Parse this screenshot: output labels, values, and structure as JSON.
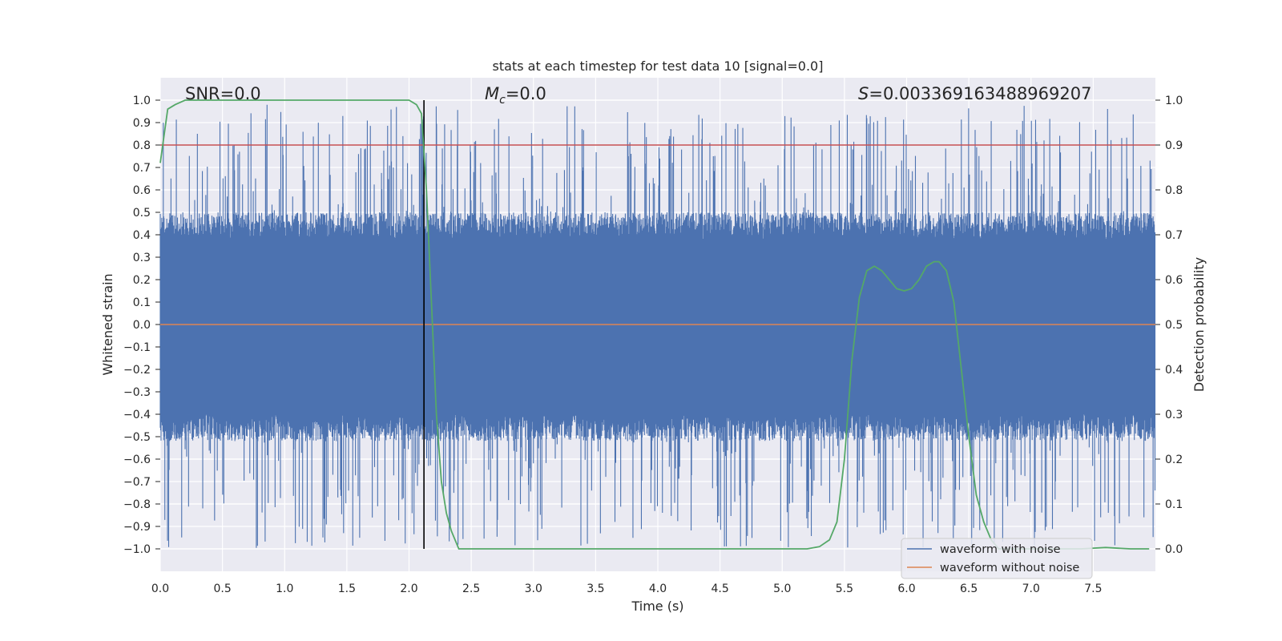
{
  "chart_data": {
    "type": "line",
    "title": "stats at each timestep for test data 10 [signal=0.0]",
    "xlabel": "Time (s)",
    "ylabel_left": "Whitened strain",
    "ylabel_right": "Detection probability",
    "xlim": [
      0.0,
      8.0
    ],
    "ylim_left": [
      -1.1,
      1.1
    ],
    "ylim_right": [
      -0.05,
      1.05
    ],
    "x_ticks": [
      "0.0",
      "0.5",
      "1.0",
      "1.5",
      "2.0",
      "2.5",
      "3.0",
      "3.5",
      "4.0",
      "4.5",
      "5.0",
      "5.5",
      "6.0",
      "6.5",
      "7.0",
      "7.5"
    ],
    "y_left_ticks": [
      "1.0",
      "0.9",
      "0.8",
      "0.7",
      "0.6",
      "0.5",
      "0.4",
      "0.3",
      "0.2",
      "0.1",
      "0.0",
      "−0.1",
      "−0.2",
      "−0.3",
      "−0.4",
      "−0.5",
      "−0.6",
      "−0.7",
      "−0.8",
      "−0.9",
      "−1.0"
    ],
    "y_right_ticks": [
      "1.0",
      "0.9",
      "0.8",
      "0.7",
      "0.6",
      "0.5",
      "0.4",
      "0.3",
      "0.2",
      "0.1",
      "0.0"
    ],
    "grid": true,
    "annotations": {
      "snr_text": "SNR=0.0",
      "mc_prefix": "M",
      "mc_sub": "c",
      "mc_value": "=0.0",
      "s_prefix": "S",
      "s_value": "=0.003369163488969207"
    },
    "threshold_line": {
      "axis": "right",
      "y": 0.9,
      "color": "#c44e52"
    },
    "vertical_marker": {
      "x": 2.12,
      "y_range_left": [
        -1.0,
        1.0
      ],
      "color": "#000000"
    },
    "noise_envelope": {
      "description_free": true,
      "core_band_left": [
        -0.4,
        0.38
      ],
      "spike_range_left": [
        -1.0,
        0.98
      ]
    },
    "series": [
      {
        "name": "waveform with noise",
        "color": "#4c72b0",
        "axis": "left"
      },
      {
        "name": "waveform without noise",
        "color": "#dd8452",
        "axis": "left",
        "x": [
          0.0,
          8.0
        ],
        "y": [
          0.0,
          0.0
        ]
      },
      {
        "color": "#55a868",
        "axis": "right",
        "x": [
          0.0,
          0.06,
          0.12,
          0.2,
          0.4,
          0.8,
          1.2,
          1.6,
          2.0,
          2.06,
          2.1,
          2.14,
          2.18,
          2.22,
          2.26,
          2.3,
          2.34,
          2.4,
          2.5,
          3.0,
          4.0,
          5.0,
          5.2,
          5.3,
          5.38,
          5.44,
          5.5,
          5.56,
          5.62,
          5.68,
          5.74,
          5.8,
          5.86,
          5.92,
          5.98,
          6.04,
          6.1,
          6.16,
          6.22,
          6.26,
          6.32,
          6.38,
          6.44,
          6.5,
          6.56,
          6.62,
          6.68,
          6.74,
          6.8,
          7.0,
          7.4,
          7.6,
          7.8,
          7.95
        ],
        "y": [
          0.86,
          0.98,
          0.99,
          1.0,
          1.0,
          1.0,
          1.0,
          1.0,
          1.0,
          0.99,
          0.97,
          0.8,
          0.55,
          0.3,
          0.15,
          0.08,
          0.04,
          0.0,
          0.0,
          0.0,
          0.0,
          0.0,
          0.0,
          0.005,
          0.02,
          0.06,
          0.2,
          0.42,
          0.56,
          0.62,
          0.63,
          0.62,
          0.6,
          0.58,
          0.575,
          0.58,
          0.6,
          0.63,
          0.64,
          0.64,
          0.62,
          0.55,
          0.4,
          0.25,
          0.12,
          0.06,
          0.02,
          0.0,
          0.0,
          0.0,
          0.0,
          0.003,
          0.0,
          0.0
        ]
      }
    ],
    "legend": {
      "placement": "lower-right"
    }
  }
}
